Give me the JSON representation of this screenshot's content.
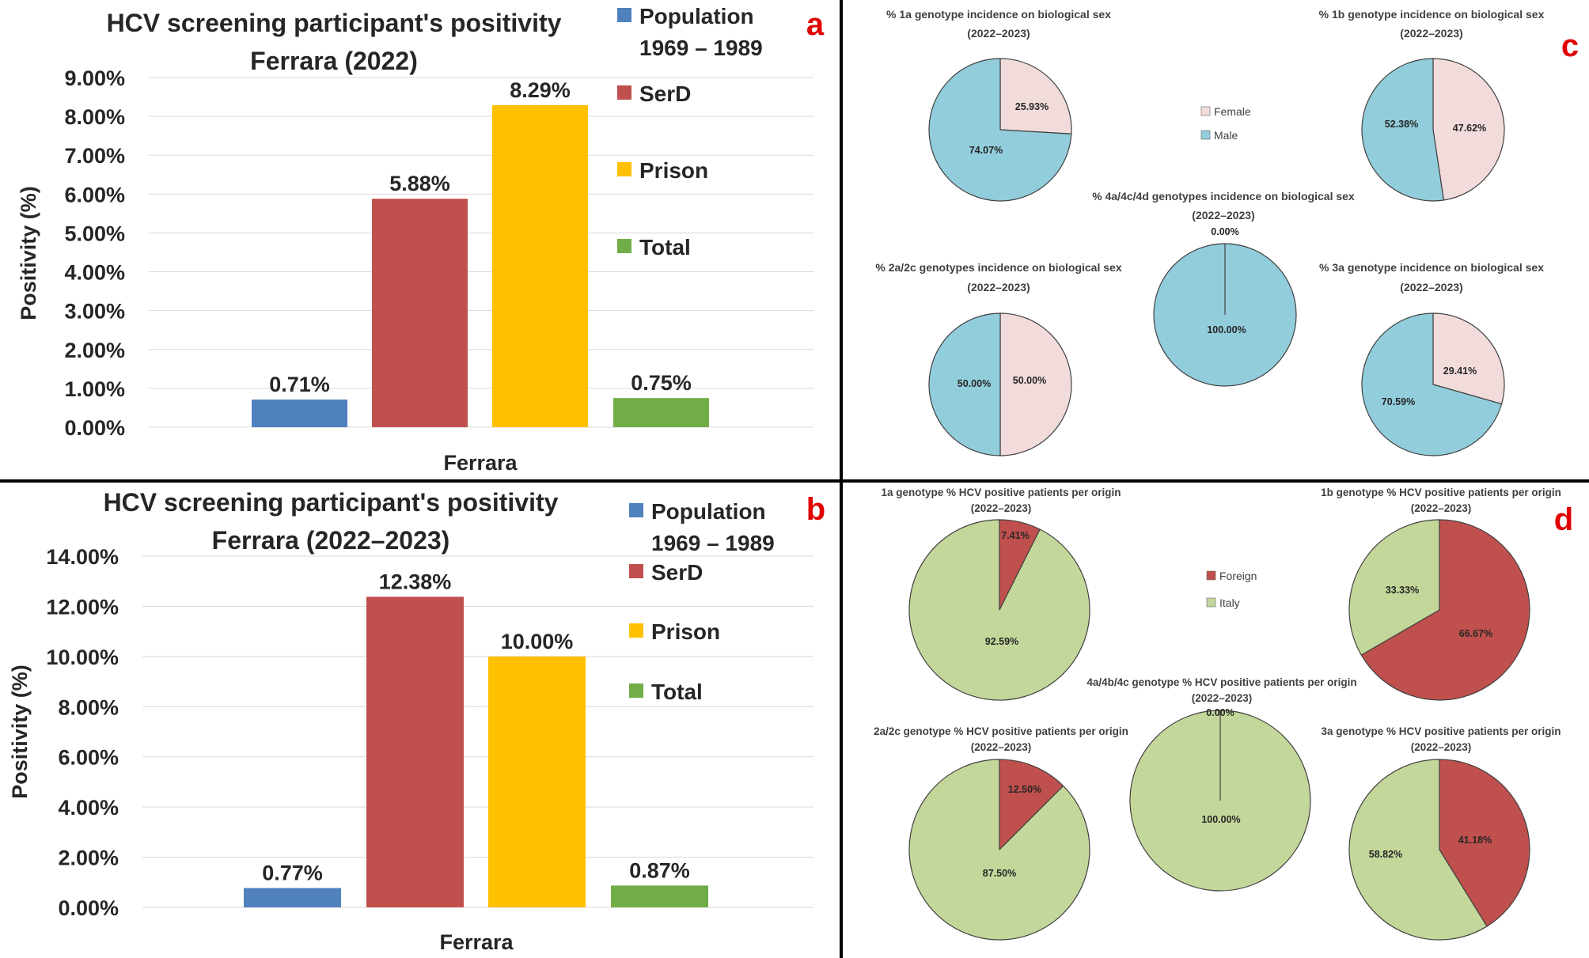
{
  "chart_data": [
    {
      "panel": "a",
      "type": "bar",
      "title": [
        "HCV screening participant's positivity",
        "Ferrara (2022)"
      ],
      "xlabel": "Ferrara",
      "ylabel": "Positivity (%)",
      "ylim": [
        0,
        9
      ],
      "yticks": [
        "0.00%",
        "1.00%",
        "2.00%",
        "3.00%",
        "4.00%",
        "5.00%",
        "6.00%",
        "7.00%",
        "8.00%",
        "9.00%"
      ],
      "categories": [
        "Ferrara"
      ],
      "series": [
        {
          "name": "Population 1969 – 1989",
          "legend_lines": [
            "Population",
            "1969 – 1989"
          ],
          "color": "#4f81bd",
          "values": [
            0.71
          ],
          "label": "0.71%"
        },
        {
          "name": "SerD",
          "legend_lines": [
            "SerD"
          ],
          "color": "#c0504d",
          "values": [
            5.88
          ],
          "label": "5.88%"
        },
        {
          "name": "Prison",
          "legend_lines": [
            "Prison"
          ],
          "color": "#ffc000",
          "values": [
            8.29
          ],
          "label": "8.29%"
        },
        {
          "name": "Total",
          "legend_lines": [
            "Total"
          ],
          "color": "#70ad47",
          "values": [
            0.75
          ],
          "label": "0.75%"
        }
      ]
    },
    {
      "panel": "b",
      "type": "bar",
      "title": [
        "HCV screening participant's positivity",
        "Ferrara (2022–2023)"
      ],
      "xlabel": "Ferrara",
      "ylabel": "Positivity (%)",
      "ylim": [
        0,
        14
      ],
      "yticks": [
        "0.00%",
        "2.00%",
        "4.00%",
        "6.00%",
        "8.00%",
        "10.00%",
        "12.00%",
        "14.00%"
      ],
      "categories": [
        "Ferrara"
      ],
      "series": [
        {
          "name": "Population 1969 – 1989",
          "legend_lines": [
            "Population",
            "1969 – 1989"
          ],
          "color": "#4f81bd",
          "values": [
            0.77
          ],
          "label": "0.77%"
        },
        {
          "name": "SerD",
          "legend_lines": [
            "SerD"
          ],
          "color": "#c0504d",
          "values": [
            12.38
          ],
          "label": "12.38%"
        },
        {
          "name": "Prison",
          "legend_lines": [
            "Prison"
          ],
          "color": "#ffc000",
          "values": [
            10.0
          ],
          "label": "10.00%"
        },
        {
          "name": "Total",
          "legend_lines": [
            "Total"
          ],
          "color": "#70ad47",
          "values": [
            0.87
          ],
          "label": "0.87%"
        }
      ]
    },
    {
      "panel": "c",
      "type": "pie",
      "legend": [
        {
          "name": "Female",
          "color": "#f2dcdb"
        },
        {
          "name": "Male",
          "color": "#92cddc"
        }
      ],
      "pies": [
        {
          "id": "c1",
          "title": [
            "% 1a genotype incidence on biological sex",
            "(2022–2023)"
          ],
          "slices": [
            {
              "name": "Female",
              "value": 25.93,
              "label": "25.93%"
            },
            {
              "name": "Male",
              "value": 74.07,
              "label": "74.07%"
            }
          ]
        },
        {
          "id": "c2",
          "title": [
            "% 1b genotype incidence on biological sex",
            "(2022–2023)"
          ],
          "slices": [
            {
              "name": "Female",
              "value": 47.62,
              "label": "47.62%"
            },
            {
              "name": "Male",
              "value": 52.38,
              "label": "52.38%"
            }
          ]
        },
        {
          "id": "c3",
          "title": [
            "% 4a/4c/4d genotypes incidence on biological sex",
            "(2022–2023)"
          ],
          "slices": [
            {
              "name": "Female",
              "value": 0.0,
              "label": "0.00%"
            },
            {
              "name": "Male",
              "value": 100.0,
              "label": "100.00%"
            }
          ]
        },
        {
          "id": "c4",
          "title": [
            "% 2a/2c genotypes incidence on biological sex",
            "(2022–2023)"
          ],
          "slices": [
            {
              "name": "Female",
              "value": 50.0,
              "label": "50.00%"
            },
            {
              "name": "Male",
              "value": 50.0,
              "label": "50.00%"
            }
          ]
        },
        {
          "id": "c5",
          "title": [
            "% 3a genotype incidence on biological sex",
            "(2022–2023)"
          ],
          "slices": [
            {
              "name": "Female",
              "value": 29.41,
              "label": "29.41%"
            },
            {
              "name": "Male",
              "value": 70.59,
              "label": "70.59%"
            }
          ]
        }
      ]
    },
    {
      "panel": "d",
      "type": "pie",
      "legend": [
        {
          "name": "Foreign",
          "color": "#c0504d"
        },
        {
          "name": "Italy",
          "color": "#c4d79b"
        }
      ],
      "pies": [
        {
          "id": "d1",
          "title": [
            "1a genotype % HCV positive patients per origin",
            "(2022–2023)"
          ],
          "slices": [
            {
              "name": "Foreign",
              "value": 7.41,
              "label": "7.41%"
            },
            {
              "name": "Italy",
              "value": 92.59,
              "label": "92.59%"
            }
          ]
        },
        {
          "id": "d2",
          "title": [
            "1b genotype % HCV positive patients per origin",
            "(2022–2023)"
          ],
          "slices": [
            {
              "name": "Foreign",
              "value": 66.67,
              "label": "66.67%"
            },
            {
              "name": "Italy",
              "value": 33.33,
              "label": "33.33%"
            }
          ]
        },
        {
          "id": "d3",
          "title": [
            "4a/4b/4c genotype % HCV positive patients per origin",
            "(2022–2023)"
          ],
          "slices": [
            {
              "name": "Foreign",
              "value": 0.0,
              "label": "0.00%"
            },
            {
              "name": "Italy",
              "value": 100.0,
              "label": "100.00%"
            }
          ]
        },
        {
          "id": "d4",
          "title": [
            "2a/2c genotype % HCV positive patients per origin",
            "(2022–2023)"
          ],
          "slices": [
            {
              "name": "Foreign",
              "value": 12.5,
              "label": "12.50%"
            },
            {
              "name": "Italy",
              "value": 87.5,
              "label": "87.50%"
            }
          ]
        },
        {
          "id": "d5",
          "title": [
            "3a genotype % HCV positive patients per origin",
            "(2022–2023)"
          ],
          "slices": [
            {
              "name": "Foreign",
              "value": 41.18,
              "label": "41.18%"
            },
            {
              "name": "Italy",
              "value": 58.82,
              "label": "58.82%"
            }
          ]
        }
      ]
    }
  ],
  "panel_labels": {
    "a": "a",
    "b": "b",
    "c": "c",
    "d": "d"
  },
  "colors": {
    "panel_label": "#e00000",
    "divider": "#000000",
    "grid": "#d9d9d9"
  }
}
